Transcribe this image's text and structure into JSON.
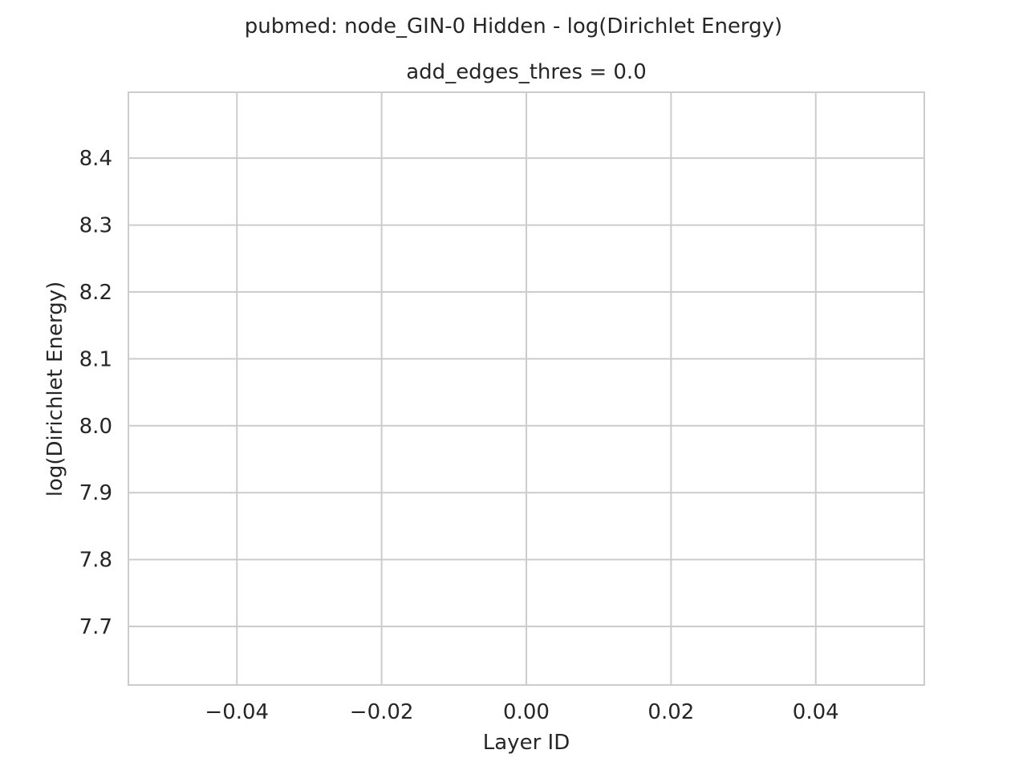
{
  "chart_data": {
    "type": "line",
    "title": "pubmed: node_GIN-0 Hidden - log(Dirichlet Energy)",
    "subplot_title": "add_edges_thres = 0.0",
    "xlabel": "Layer ID",
    "ylabel": "log(Dirichlet Energy)",
    "xlim": [
      -0.055,
      0.055
    ],
    "ylim": [
      7.6125,
      8.4985
    ],
    "xticks": [
      -0.04,
      -0.02,
      0.0,
      0.02,
      0.04
    ],
    "xtick_labels": [
      "−0.04",
      "−0.02",
      "0.00",
      "0.02",
      "0.04"
    ],
    "yticks": [
      7.7,
      7.8,
      7.9,
      8.0,
      8.1,
      8.2,
      8.3,
      8.4
    ],
    "ytick_labels": [
      "7.7",
      "7.8",
      "7.9",
      "8.0",
      "8.1",
      "8.2",
      "8.3",
      "8.4"
    ],
    "grid": true,
    "series": []
  }
}
